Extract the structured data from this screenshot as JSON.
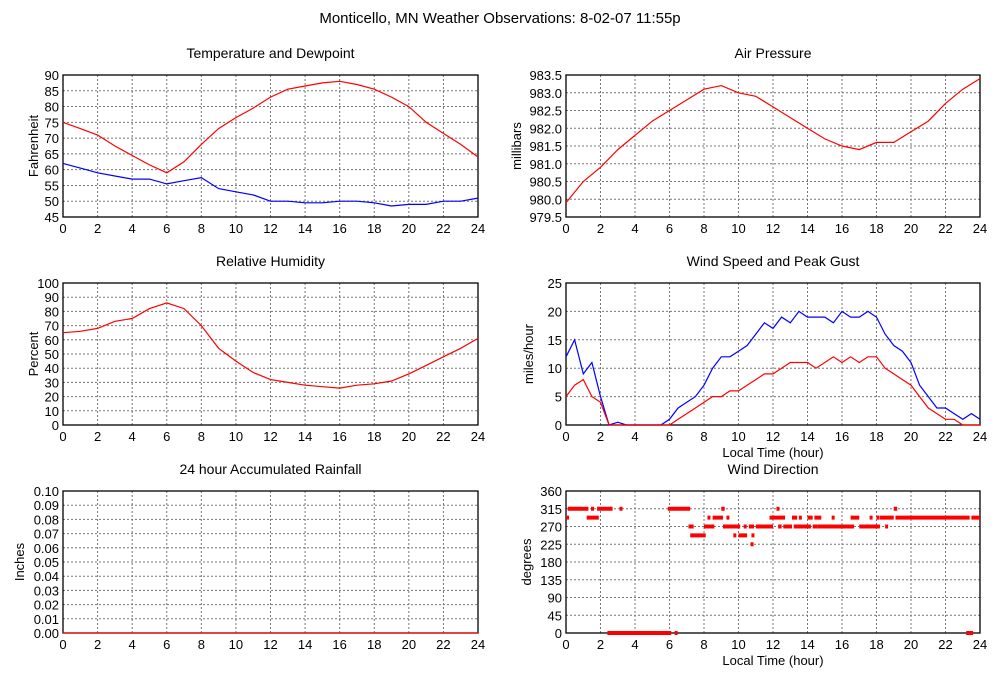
{
  "page_title": "Monticello, MN Weather Observations: 8-02-07 11:55p",
  "chart_data": [
    {
      "type": "line",
      "title": "Temperature and Dewpoint",
      "xlabel": "",
      "ylabel": "Fahrenheit",
      "xlim": [
        0,
        24
      ],
      "ylim": [
        45,
        90
      ],
      "xticks": [
        0,
        2,
        4,
        6,
        8,
        10,
        12,
        14,
        16,
        18,
        20,
        22,
        24
      ],
      "yticks": [
        45,
        50,
        55,
        60,
        65,
        70,
        75,
        80,
        85,
        90
      ],
      "ytick_labels": [
        "45",
        "50",
        "55",
        "60",
        "65",
        "70",
        "75",
        "80",
        "85",
        "90"
      ],
      "grid": true,
      "x": [
        0,
        1,
        2,
        3,
        4,
        5,
        6,
        7,
        8,
        9,
        10,
        11,
        12,
        13,
        14,
        15,
        16,
        17,
        18,
        19,
        20,
        21,
        22,
        23,
        24
      ],
      "series": [
        {
          "name": "Temperature",
          "color": "#ff0000",
          "values": [
            75,
            73,
            71,
            67.5,
            64.5,
            61.5,
            59,
            62.5,
            68,
            73,
            76.5,
            79.5,
            83,
            85.5,
            86.5,
            87.5,
            88,
            87,
            85.5,
            83,
            80,
            75,
            71.5,
            68,
            64
          ]
        },
        {
          "name": "Dewpoint",
          "color": "#0000ff",
          "values": [
            62,
            60.5,
            59,
            58,
            57,
            57,
            55.5,
            56.5,
            57.5,
            54,
            53,
            52,
            50,
            50,
            49.5,
            49.5,
            50,
            50,
            49.5,
            48.5,
            49,
            49,
            50,
            50,
            51
          ]
        }
      ]
    },
    {
      "type": "line",
      "title": "Air Pressure",
      "xlabel": "",
      "ylabel": "millibars",
      "xlim": [
        0,
        24
      ],
      "ylim": [
        979.5,
        983.5
      ],
      "xticks": [
        0,
        2,
        4,
        6,
        8,
        10,
        12,
        14,
        16,
        18,
        20,
        22,
        24
      ],
      "yticks": [
        979.5,
        980,
        980.5,
        981,
        981.5,
        982,
        982.5,
        983,
        983.5
      ],
      "ytick_labels": [
        "979.5",
        "980.0",
        "980.5",
        "981.0",
        "981.5",
        "982.0",
        "982.5",
        "983.0",
        "983.5"
      ],
      "grid": true,
      "x": [
        0,
        1,
        2,
        3,
        4,
        5,
        6,
        7,
        8,
        9,
        10,
        11,
        12,
        13,
        14,
        15,
        16,
        17,
        18,
        19,
        20,
        21,
        22,
        23,
        24
      ],
      "series": [
        {
          "name": "Pressure",
          "color": "#ff0000",
          "values": [
            979.9,
            980.5,
            980.9,
            981.4,
            981.8,
            982.2,
            982.5,
            982.8,
            983.1,
            983.2,
            983.0,
            982.9,
            982.6,
            982.3,
            982.0,
            981.7,
            981.5,
            981.4,
            981.6,
            981.6,
            981.9,
            982.2,
            982.7,
            983.1,
            983.4
          ]
        }
      ]
    },
    {
      "type": "line",
      "title": "Relative Humidity",
      "xlabel": "",
      "ylabel": "Percent",
      "xlim": [
        0,
        24
      ],
      "ylim": [
        0,
        100
      ],
      "xticks": [
        0,
        2,
        4,
        6,
        8,
        10,
        12,
        14,
        16,
        18,
        20,
        22,
        24
      ],
      "yticks": [
        0,
        10,
        20,
        30,
        40,
        50,
        60,
        70,
        80,
        90,
        100
      ],
      "ytick_labels": [
        "0",
        "10",
        "20",
        "30",
        "40",
        "50",
        "60",
        "70",
        "80",
        "90",
        "100"
      ],
      "grid": true,
      "x": [
        0,
        1,
        2,
        3,
        4,
        5,
        6,
        7,
        8,
        9,
        10,
        11,
        12,
        13,
        14,
        15,
        16,
        17,
        18,
        19,
        20,
        21,
        22,
        23,
        24
      ],
      "series": [
        {
          "name": "Relative Humidity",
          "color": "#ff0000",
          "values": [
            65,
            66,
            68,
            73,
            75,
            82,
            86,
            82,
            70,
            54,
            45,
            37,
            32,
            30,
            28,
            27,
            26,
            28,
            29,
            31,
            36,
            42,
            48,
            54,
            61
          ]
        }
      ]
    },
    {
      "type": "line",
      "title": "Wind Speed and Peak Gust",
      "xlabel": "Local Time (hour)",
      "ylabel": "miles/hour",
      "xlim": [
        0,
        24
      ],
      "ylim": [
        0,
        25
      ],
      "xticks": [
        0,
        2,
        4,
        6,
        8,
        10,
        12,
        14,
        16,
        18,
        20,
        22,
        24
      ],
      "yticks": [
        0,
        5,
        10,
        15,
        20,
        25
      ],
      "ytick_labels": [
        "0",
        "5",
        "10",
        "15",
        "20",
        "25"
      ],
      "grid": true,
      "x": [
        0,
        0.5,
        1,
        1.5,
        2,
        2.5,
        3,
        3.5,
        4,
        4.5,
        5,
        5.5,
        6,
        6.5,
        7,
        7.5,
        8,
        8.5,
        9,
        9.5,
        10,
        10.5,
        11,
        11.5,
        12,
        12.5,
        13,
        13.5,
        14,
        14.5,
        15,
        15.5,
        16,
        16.5,
        17,
        17.5,
        18,
        18.5,
        19,
        19.5,
        20,
        20.5,
        21,
        21.5,
        22,
        22.5,
        23,
        23.5,
        24
      ],
      "series": [
        {
          "name": "Peak Gust",
          "color": "#0000ff",
          "values": [
            12,
            15,
            9,
            11,
            5,
            0,
            0.5,
            0,
            0,
            0,
            0,
            0,
            1,
            3,
            4,
            5,
            7,
            10,
            12,
            12,
            13,
            14,
            16,
            18,
            17,
            19,
            18,
            20,
            19,
            19,
            19,
            18,
            20,
            19,
            19,
            20,
            19,
            16,
            14,
            13,
            11,
            7,
            5,
            3,
            3,
            2,
            1,
            2,
            1
          ]
        },
        {
          "name": "Wind Speed",
          "color": "#ff0000",
          "values": [
            5,
            7,
            8,
            5,
            4,
            0,
            0,
            0,
            0,
            0,
            0,
            0,
            0,
            1,
            2,
            3,
            4,
            5,
            5,
            6,
            6,
            7,
            8,
            9,
            9,
            10,
            11,
            11,
            11,
            10,
            11,
            12,
            11,
            12,
            11,
            12,
            12,
            10,
            9,
            8,
            7,
            5,
            3,
            2,
            1,
            1,
            0,
            0,
            0
          ]
        }
      ]
    },
    {
      "type": "line",
      "title": "24 hour Accumulated Rainfall",
      "xlabel": "",
      "ylabel": "Inches",
      "xlim": [
        0,
        24
      ],
      "ylim": [
        0,
        0.1
      ],
      "xticks": [
        0,
        2,
        4,
        6,
        8,
        10,
        12,
        14,
        16,
        18,
        20,
        22,
        24
      ],
      "yticks": [
        0,
        0.01,
        0.02,
        0.03,
        0.04,
        0.05,
        0.06,
        0.07,
        0.08,
        0.09,
        0.1
      ],
      "ytick_labels": [
        "0.00",
        "0.01",
        "0.02",
        "0.03",
        "0.04",
        "0.05",
        "0.06",
        "0.07",
        "0.08",
        "0.09",
        "0.10"
      ],
      "grid": true,
      "x": [
        0,
        24
      ],
      "series": [
        {
          "name": "Rainfall",
          "color": "#ff0000",
          "values": [
            0,
            0
          ]
        }
      ]
    },
    {
      "type": "scatter",
      "title": "Wind Direction",
      "xlabel": "Local Time (hour)",
      "ylabel": "degrees",
      "xlim": [
        0,
        24
      ],
      "ylim": [
        0,
        360
      ],
      "xticks": [
        0,
        2,
        4,
        6,
        8,
        10,
        12,
        14,
        16,
        18,
        20,
        22,
        24
      ],
      "yticks": [
        0,
        45,
        90,
        135,
        180,
        225,
        270,
        315,
        360
      ],
      "ytick_labels": [
        "0",
        "45",
        "90",
        "135",
        "180",
        "225",
        "270",
        "315",
        "360"
      ],
      "grid": true,
      "color": "#ff0000",
      "runs": [
        {
          "from": 0,
          "to": 0.15,
          "deg": 292.5
        },
        {
          "from": 0.1,
          "to": 1.3,
          "deg": 315
        },
        {
          "from": 1.2,
          "to": 1.9,
          "deg": 292.5
        },
        {
          "from": 1.45,
          "to": 1.55,
          "deg": 315
        },
        {
          "from": 1.8,
          "to": 2.7,
          "deg": 315
        },
        {
          "from": 3.1,
          "to": 3.2,
          "deg": 315
        },
        {
          "from": 2.4,
          "to": 6.1,
          "deg": 0
        },
        {
          "from": 6.3,
          "to": 6.4,
          "deg": 0
        },
        {
          "from": 5.9,
          "to": 7.2,
          "deg": 315
        },
        {
          "from": 7.1,
          "to": 7.4,
          "deg": 270
        },
        {
          "from": 7.2,
          "to": 8.1,
          "deg": 247.5
        },
        {
          "from": 8.0,
          "to": 8.6,
          "deg": 270
        },
        {
          "from": 8.2,
          "to": 8.3,
          "deg": 292.5
        },
        {
          "from": 8.5,
          "to": 9.1,
          "deg": 292.5
        },
        {
          "from": 9.3,
          "to": 9.45,
          "deg": 292.5
        },
        {
          "from": 9.0,
          "to": 9.2,
          "deg": 315
        },
        {
          "from": 9.1,
          "to": 10.1,
          "deg": 270
        },
        {
          "from": 9.7,
          "to": 9.85,
          "deg": 247.5
        },
        {
          "from": 10.0,
          "to": 10.5,
          "deg": 247.5
        },
        {
          "from": 10.3,
          "to": 10.45,
          "deg": 270
        },
        {
          "from": 10.6,
          "to": 10.9,
          "deg": 270
        },
        {
          "from": 10.75,
          "to": 10.9,
          "deg": 247.5
        },
        {
          "from": 10.7,
          "to": 10.8,
          "deg": 225
        },
        {
          "from": 11.0,
          "to": 12.0,
          "deg": 270
        },
        {
          "from": 11.8,
          "to": 12.7,
          "deg": 292.5
        },
        {
          "from": 12.2,
          "to": 12.3,
          "deg": 315
        },
        {
          "from": 12.3,
          "to": 12.5,
          "deg": 270
        },
        {
          "from": 12.6,
          "to": 13.1,
          "deg": 270
        },
        {
          "from": 13.1,
          "to": 13.4,
          "deg": 292.5
        },
        {
          "from": 13.5,
          "to": 13.6,
          "deg": 292.5
        },
        {
          "from": 13.2,
          "to": 14.2,
          "deg": 270
        },
        {
          "from": 14.0,
          "to": 14.3,
          "deg": 292.5
        },
        {
          "from": 14.3,
          "to": 14.6,
          "deg": 270
        },
        {
          "from": 14.4,
          "to": 14.8,
          "deg": 292.5
        },
        {
          "from": 14.6,
          "to": 16.7,
          "deg": 270
        },
        {
          "from": 15.4,
          "to": 15.55,
          "deg": 292.5
        },
        {
          "from": 16.5,
          "to": 17.0,
          "deg": 292.5
        },
        {
          "from": 17.0,
          "to": 18.2,
          "deg": 270
        },
        {
          "from": 17.6,
          "to": 17.7,
          "deg": 292.5
        },
        {
          "from": 18.0,
          "to": 18.1,
          "deg": 292.5
        },
        {
          "from": 18.2,
          "to": 19.0,
          "deg": 292.5
        },
        {
          "from": 18.5,
          "to": 18.6,
          "deg": 270
        },
        {
          "from": 19.0,
          "to": 19.2,
          "deg": 315
        },
        {
          "from": 19.1,
          "to": 23.4,
          "deg": 292.5
        },
        {
          "from": 23.2,
          "to": 23.6,
          "deg": 0
        },
        {
          "from": 23.5,
          "to": 24,
          "deg": 292.5
        }
      ]
    }
  ]
}
